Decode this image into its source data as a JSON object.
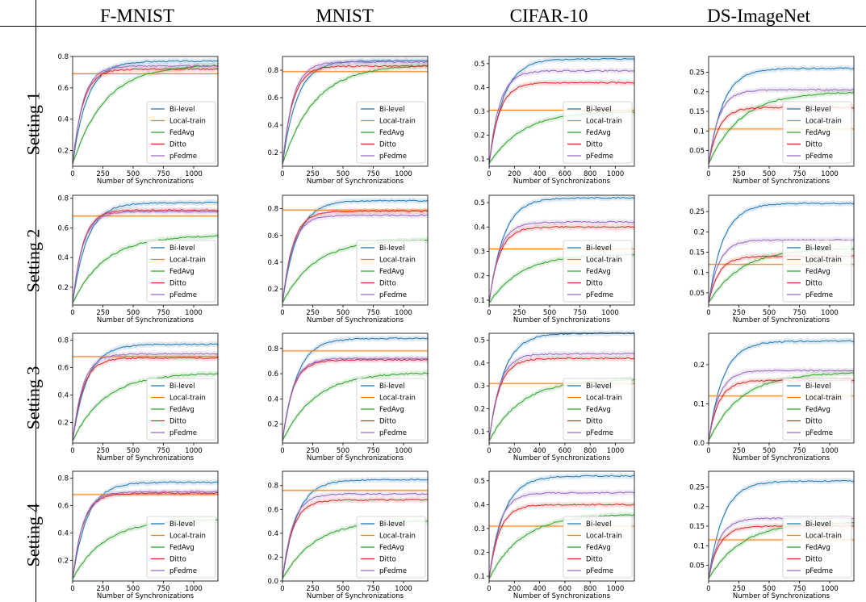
{
  "columns": [
    "F-MNIST",
    "MNIST",
    "CIFAR-10",
    "DS-ImageNet"
  ],
  "rows": [
    "Setting 1",
    "Setting 2",
    "Setting 3",
    "Setting 4"
  ],
  "colors": {
    "Bi-level": "#1f77b4",
    "Local-train": "#ff7f0e",
    "FedAvg": "#2ca02c",
    "Ditto": "#d62728",
    "pFedme": "#9467bd"
  },
  "chart_data": [
    {
      "type": "line",
      "dataset": "F-MNIST",
      "setting": "Setting 1",
      "xlabel": "Number of Synchronizations",
      "xlim": [
        0,
        1200
      ],
      "ylim": [
        0.1,
        0.8
      ],
      "yticks": [
        0.2,
        0.4,
        0.6,
        0.8
      ],
      "xticks": [
        0,
        250,
        500,
        750,
        1000
      ],
      "legend": "lower-right",
      "series": [
        {
          "name": "Bi-level",
          "final": 0.77
        },
        {
          "name": "Local-train",
          "final": 0.69,
          "flat": true
        },
        {
          "name": "FedAvg",
          "final": 0.75
        },
        {
          "name": "Ditto",
          "final": 0.72
        },
        {
          "name": "pFedme",
          "final": 0.74
        }
      ]
    },
    {
      "type": "line",
      "dataset": "MNIST",
      "setting": "Setting 1",
      "xlabel": "Number of Synchronizations",
      "xlim": [
        0,
        1200
      ],
      "ylim": [
        0.1,
        0.9
      ],
      "yticks": [
        0.2,
        0.4,
        0.6,
        0.8
      ],
      "xticks": [
        0,
        250,
        500,
        750,
        1000
      ],
      "legend": "lower-right",
      "series": [
        {
          "name": "Bi-level",
          "final": 0.87
        },
        {
          "name": "Local-train",
          "final": 0.79,
          "flat": true
        },
        {
          "name": "FedAvg",
          "final": 0.84
        },
        {
          "name": "Ditto",
          "final": 0.83
        },
        {
          "name": "pFedme",
          "final": 0.86
        }
      ]
    },
    {
      "type": "line",
      "dataset": "CIFAR-10",
      "setting": "Setting 1",
      "xlabel": "Number of Synchronizations",
      "xlim": [
        0,
        1150
      ],
      "ylim": [
        0.07,
        0.53
      ],
      "yticks": [
        0.1,
        0.2,
        0.3,
        0.4,
        0.5
      ],
      "xticks": [
        0,
        200,
        400,
        600,
        800,
        1000
      ],
      "legend": "lower-right",
      "series": [
        {
          "name": "Bi-level",
          "final": 0.52
        },
        {
          "name": "Local-train",
          "final": 0.305,
          "flat": true
        },
        {
          "name": "FedAvg",
          "final": 0.3
        },
        {
          "name": "Ditto",
          "final": 0.42
        },
        {
          "name": "pFedme",
          "final": 0.47
        }
      ]
    },
    {
      "type": "line",
      "dataset": "DS-ImageNet",
      "setting": "Setting 1",
      "xlabel": "Number of Synchronizations",
      "xlim": [
        0,
        1200
      ],
      "ylim": [
        0.01,
        0.29
      ],
      "yticks": [
        0.05,
        0.1,
        0.15,
        0.2,
        0.25
      ],
      "xticks": [
        0,
        250,
        500,
        750,
        1000
      ],
      "legend": "lower-right",
      "series": [
        {
          "name": "Bi-level",
          "final": 0.26
        },
        {
          "name": "Local-train",
          "final": 0.105,
          "flat": true
        },
        {
          "name": "FedAvg",
          "final": 0.2
        },
        {
          "name": "Ditto",
          "final": 0.16
        },
        {
          "name": "pFedme",
          "final": 0.205
        }
      ]
    },
    {
      "type": "line",
      "dataset": "F-MNIST",
      "setting": "Setting 2",
      "xlabel": "Number of Synchronizations",
      "xlim": [
        0,
        1200
      ],
      "ylim": [
        0.08,
        0.82
      ],
      "yticks": [
        0.2,
        0.4,
        0.6,
        0.8
      ],
      "xticks": [
        0,
        250,
        500,
        750,
        1000
      ],
      "legend": "lower-right",
      "series": [
        {
          "name": "Bi-level",
          "final": 0.77
        },
        {
          "name": "Local-train",
          "final": 0.68,
          "flat": true
        },
        {
          "name": "FedAvg",
          "final": 0.55
        },
        {
          "name": "Ditto",
          "final": 0.72
        },
        {
          "name": "pFedme",
          "final": 0.71
        }
      ]
    },
    {
      "type": "line",
      "dataset": "MNIST",
      "setting": "Setting 2",
      "xlabel": "Number of Synchronizations",
      "xlim": [
        0,
        1200
      ],
      "ylim": [
        0.08,
        0.9
      ],
      "yticks": [
        0.2,
        0.4,
        0.6,
        0.8
      ],
      "xticks": [
        0,
        250,
        500,
        750,
        1000
      ],
      "legend": "lower-right",
      "series": [
        {
          "name": "Bi-level",
          "final": 0.86
        },
        {
          "name": "Local-train",
          "final": 0.79,
          "flat": true
        },
        {
          "name": "FedAvg",
          "final": 0.57
        },
        {
          "name": "Ditto",
          "final": 0.78
        },
        {
          "name": "pFedme",
          "final": 0.75
        }
      ]
    },
    {
      "type": "line",
      "dataset": "CIFAR-10",
      "setting": "Setting 2",
      "xlabel": "Number of Synchronizations",
      "xlim": [
        0,
        1200
      ],
      "ylim": [
        0.08,
        0.53
      ],
      "yticks": [
        0.1,
        0.2,
        0.3,
        0.4,
        0.5
      ],
      "xticks": [
        0,
        250,
        500,
        750,
        1000
      ],
      "legend": "lower-right",
      "series": [
        {
          "name": "Bi-level",
          "final": 0.52
        },
        {
          "name": "Local-train",
          "final": 0.31,
          "flat": true
        },
        {
          "name": "FedAvg",
          "final": 0.29
        },
        {
          "name": "Ditto",
          "final": 0.4
        },
        {
          "name": "pFedme",
          "final": 0.42
        }
      ]
    },
    {
      "type": "line",
      "dataset": "DS-ImageNet",
      "setting": "Setting 2",
      "xlabel": "Number of Synchronizations",
      "xlim": [
        0,
        1200
      ],
      "ylim": [
        0.02,
        0.29
      ],
      "yticks": [
        0.05,
        0.1,
        0.15,
        0.2,
        0.25
      ],
      "xticks": [
        0,
        250,
        500,
        750,
        1000
      ],
      "legend": "lower-right",
      "series": [
        {
          "name": "Bi-level",
          "final": 0.27
        },
        {
          "name": "Local-train",
          "final": 0.12,
          "flat": true
        },
        {
          "name": "FedAvg",
          "final": 0.16
        },
        {
          "name": "Ditto",
          "final": 0.14
        },
        {
          "name": "pFedme",
          "final": 0.18
        }
      ]
    },
    {
      "type": "line",
      "dataset": "F-MNIST",
      "setting": "Setting 3",
      "xlabel": "Number of Synchronizations",
      "xlim": [
        0,
        1200
      ],
      "ylim": [
        0.05,
        0.85
      ],
      "yticks": [
        0.2,
        0.4,
        0.6,
        0.8
      ],
      "xticks": [
        0,
        250,
        500,
        750,
        1000
      ],
      "legend": "lower-right",
      "series": [
        {
          "name": "Bi-level",
          "final": 0.77
        },
        {
          "name": "Local-train",
          "final": 0.68,
          "flat": true
        },
        {
          "name": "FedAvg",
          "final": 0.56
        },
        {
          "name": "Ditto",
          "final": 0.67
        },
        {
          "name": "pFedme",
          "final": 0.7
        }
      ]
    },
    {
      "type": "line",
      "dataset": "MNIST",
      "setting": "Setting 3",
      "xlabel": "Number of Synchronizations",
      "xlim": [
        0,
        1200
      ],
      "ylim": [
        0.05,
        0.92
      ],
      "yticks": [
        0.2,
        0.4,
        0.6,
        0.8
      ],
      "xticks": [
        0,
        250,
        500,
        750,
        1000
      ],
      "legend": "lower-right",
      "series": [
        {
          "name": "Bi-level",
          "final": 0.88
        },
        {
          "name": "Local-train",
          "final": 0.78,
          "flat": true
        },
        {
          "name": "FedAvg",
          "final": 0.61
        },
        {
          "name": "Ditto",
          "final": 0.71
        },
        {
          "name": "pFedme",
          "final": 0.72
        }
      ]
    },
    {
      "type": "line",
      "dataset": "CIFAR-10",
      "setting": "Setting 3",
      "xlabel": "Number of Synchronizations",
      "xlim": [
        0,
        1150
      ],
      "ylim": [
        0.05,
        0.53
      ],
      "yticks": [
        0.1,
        0.2,
        0.3,
        0.4,
        0.5
      ],
      "xticks": [
        0,
        200,
        400,
        600,
        800,
        1000
      ],
      "legend": "lower-right",
      "series": [
        {
          "name": "Bi-level",
          "final": 0.53
        },
        {
          "name": "Local-train",
          "final": 0.31,
          "flat": true
        },
        {
          "name": "FedAvg",
          "final": 0.33
        },
        {
          "name": "Ditto",
          "final": 0.42
        },
        {
          "name": "pFedme",
          "final": 0.44
        }
      ]
    },
    {
      "type": "line",
      "dataset": "DS-ImageNet",
      "setting": "Setting 3",
      "xlabel": "Number of Synchronizations",
      "xlim": [
        0,
        1200
      ],
      "ylim": [
        0.0,
        0.28
      ],
      "yticks": [
        0.0,
        0.1,
        0.2
      ],
      "xticks": [
        0,
        250,
        500,
        750,
        1000
      ],
      "legend": "lower-right",
      "series": [
        {
          "name": "Bi-level",
          "final": 0.26
        },
        {
          "name": "Local-train",
          "final": 0.12,
          "flat": true
        },
        {
          "name": "FedAvg",
          "final": 0.18
        },
        {
          "name": "Ditto",
          "final": 0.16
        },
        {
          "name": "pFedme",
          "final": 0.185
        }
      ]
    },
    {
      "type": "line",
      "dataset": "F-MNIST",
      "setting": "Setting 4",
      "xlabel": "Number of Synchronizations",
      "xlim": [
        0,
        1200
      ],
      "ylim": [
        0.05,
        0.85
      ],
      "yticks": [
        0.2,
        0.4,
        0.6,
        0.8
      ],
      "xticks": [
        0,
        250,
        500,
        750,
        1000
      ],
      "legend": "lower-right",
      "series": [
        {
          "name": "Bi-level",
          "final": 0.77
        },
        {
          "name": "Local-train",
          "final": 0.68,
          "flat": true
        },
        {
          "name": "FedAvg",
          "final": 0.5
        },
        {
          "name": "Ditto",
          "final": 0.69
        },
        {
          "name": "pFedme",
          "final": 0.7
        }
      ]
    },
    {
      "type": "line",
      "dataset": "MNIST",
      "setting": "Setting 4",
      "xlabel": "Number of Synchronizations",
      "xlim": [
        0,
        1200
      ],
      "ylim": [
        0.0,
        0.92
      ],
      "yticks": [
        0.0,
        0.2,
        0.4,
        0.6,
        0.8
      ],
      "xticks": [
        0,
        250,
        500,
        750,
        1000
      ],
      "legend": "lower-right",
      "series": [
        {
          "name": "Bi-level",
          "final": 0.85
        },
        {
          "name": "Local-train",
          "final": 0.76,
          "flat": true
        },
        {
          "name": "FedAvg",
          "final": 0.51
        },
        {
          "name": "Ditto",
          "final": 0.68
        },
        {
          "name": "pFedme",
          "final": 0.73
        }
      ]
    },
    {
      "type": "line",
      "dataset": "CIFAR-10",
      "setting": "Setting 4",
      "xlabel": "Number of Synchronizations",
      "xlim": [
        0,
        1150
      ],
      "ylim": [
        0.08,
        0.54
      ],
      "yticks": [
        0.1,
        0.2,
        0.3,
        0.4,
        0.5
      ],
      "xticks": [
        0,
        200,
        400,
        600,
        800,
        1000
      ],
      "legend": "lower-right",
      "series": [
        {
          "name": "Bi-level",
          "final": 0.52
        },
        {
          "name": "Local-train",
          "final": 0.31,
          "flat": true
        },
        {
          "name": "FedAvg",
          "final": 0.36
        },
        {
          "name": "Ditto",
          "final": 0.4
        },
        {
          "name": "pFedme",
          "final": 0.45
        }
      ]
    },
    {
      "type": "line",
      "dataset": "DS-ImageNet",
      "setting": "Setting 4",
      "xlabel": "Number of Synchronizations",
      "xlim": [
        0,
        1200
      ],
      "ylim": [
        0.01,
        0.29
      ],
      "yticks": [
        0.05,
        0.1,
        0.15,
        0.2,
        0.25
      ],
      "xticks": [
        0,
        250,
        500,
        750,
        1000
      ],
      "legend": "lower-right",
      "series": [
        {
          "name": "Bi-level",
          "final": 0.265
        },
        {
          "name": "Local-train",
          "final": 0.115,
          "flat": true
        },
        {
          "name": "FedAvg",
          "final": 0.16
        },
        {
          "name": "Ditto",
          "final": 0.15
        },
        {
          "name": "pFedme",
          "final": 0.17
        }
      ]
    }
  ]
}
